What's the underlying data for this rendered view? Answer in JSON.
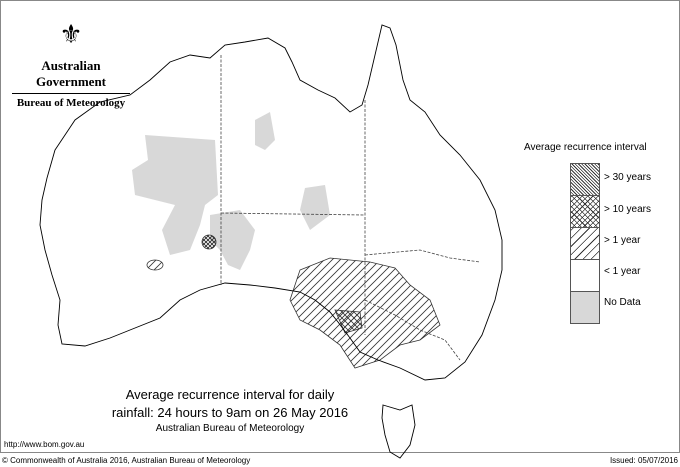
{
  "header": {
    "org": "Australian Government",
    "bureau": "Bureau of Meteorology",
    "logo": "coat-of-arms"
  },
  "legend": {
    "title": "Average recurrence interval",
    "items": [
      {
        "label": "> 30 years",
        "pattern": "dense-crosshatch"
      },
      {
        "label": "> 10 years",
        "pattern": "crosshatch"
      },
      {
        "label": "> 1 year",
        "pattern": "diagonal-hatch"
      },
      {
        "label": "< 1 year",
        "pattern": "white"
      },
      {
        "label": "No Data",
        "pattern": "gray",
        "color": "#d8d8d8"
      }
    ]
  },
  "map": {
    "title_line1": "Average recurrence interval for daily",
    "title_line2": "rainfall: 24 hours to 9am on 26 May 2016",
    "subtitle": "Australian Bureau of Meteorology"
  },
  "footer": {
    "url": "http://www.bom.gov.au",
    "copyright": "© Commonwealth of Australia 2016, Australian Bureau of Meteorology",
    "issued": "Issued: 05/07/2016"
  }
}
